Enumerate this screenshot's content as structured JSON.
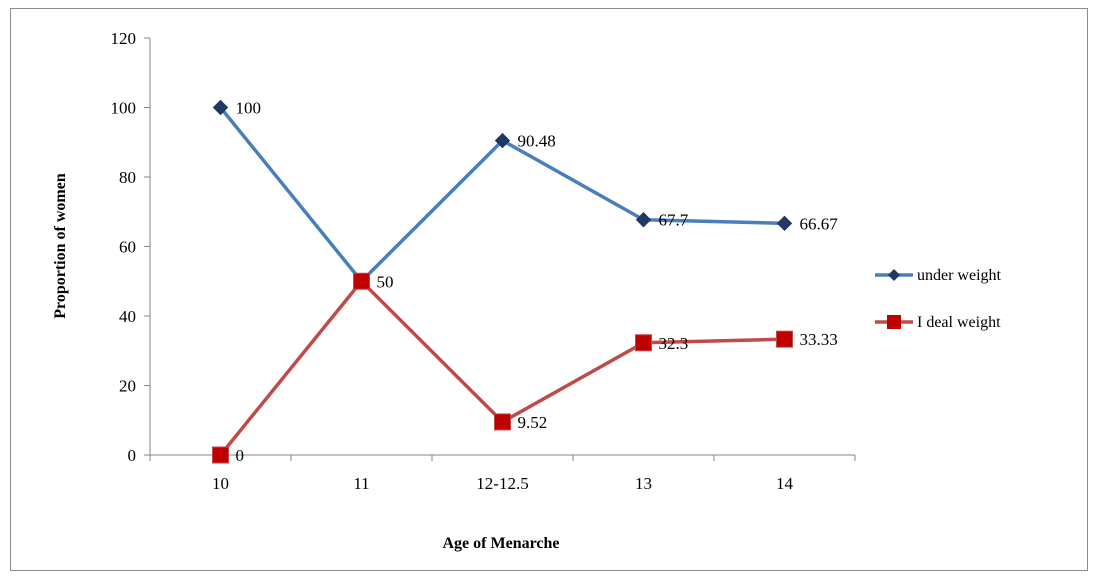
{
  "chart_data": {
    "type": "line",
    "categories": [
      "10",
      "11",
      "12-12.5",
      "13",
      "14"
    ],
    "series": [
      {
        "name": "under weight",
        "values": [
          100,
          50,
          90.48,
          67.7,
          66.67
        ],
        "labels": [
          "100",
          "50",
          "90.48",
          "67.7",
          "66.67"
        ],
        "color": "#4a7ebb",
        "marker": "diamond",
        "marker_color": "#1f3864"
      },
      {
        "name": "I deal weight",
        "values": [
          0,
          50,
          9.52,
          32.3,
          33.33
        ],
        "labels": [
          "0",
          "",
          "9.52",
          "32.3",
          "33.33"
        ],
        "color": "#be4b48",
        "marker": "square",
        "marker_color": "#c00000"
      }
    ],
    "xlabel": "Age of Menarche",
    "ylabel": "Proportion of women",
    "ylim": [
      0,
      120
    ],
    "yticks": [
      0,
      20,
      40,
      60,
      80,
      100,
      120
    ],
    "grid": false,
    "legend": "right"
  }
}
